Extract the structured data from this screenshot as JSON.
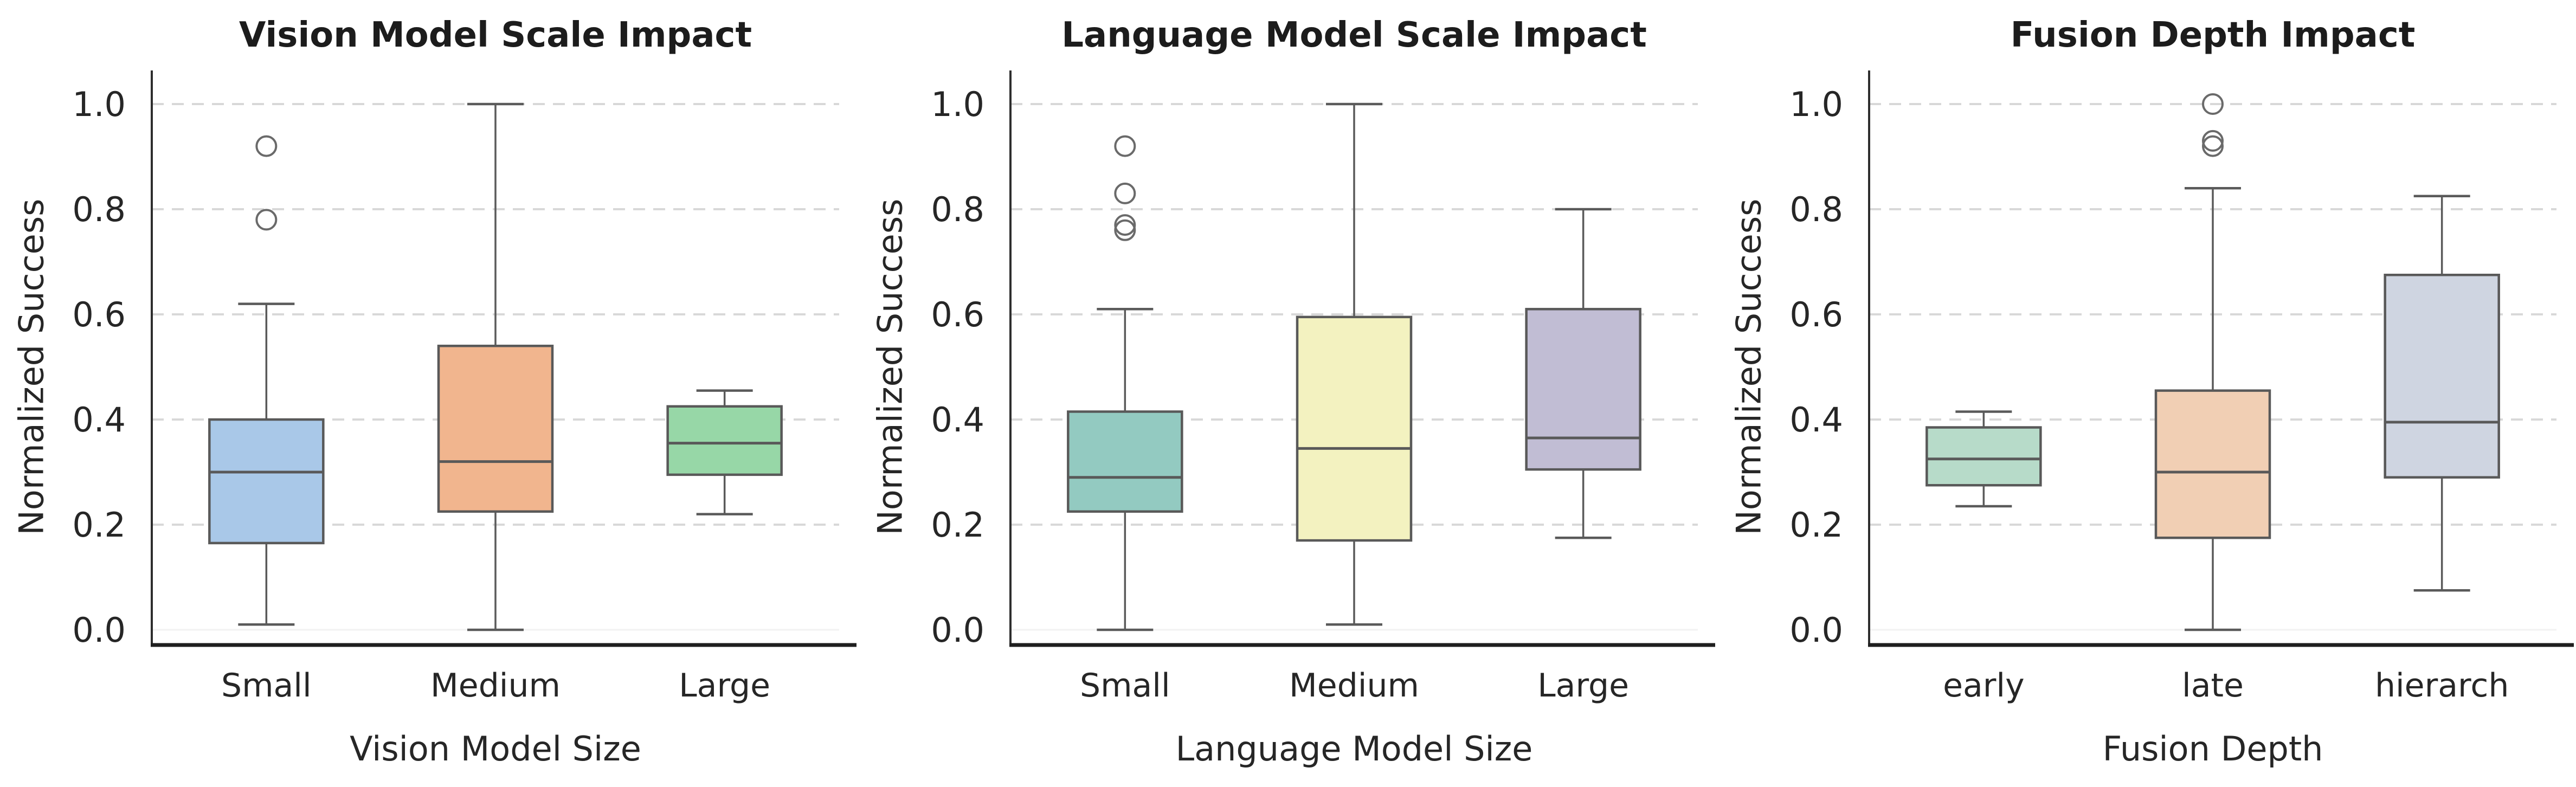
{
  "figure": {
    "background": "#ffffff",
    "text_color": "#262626",
    "title_color": "#1c1c1c",
    "grid_color": "#d8d8d8",
    "zero_line_color": "#f2f2f2",
    "spine_color": "#2e2e2e",
    "bottom_spine_color": "#1f1f1f",
    "box_edge_color": "#595959",
    "whisker_color": "#5a5a5a",
    "flier_color": "#6a6a6a",
    "ylabel": "Normalized Success",
    "ytick_labels": [
      "0.0",
      "0.2",
      "0.4",
      "0.6",
      "0.8",
      "1.0"
    ],
    "ytick_values": [
      0.0,
      0.2,
      0.4,
      0.6,
      0.8,
      1.0
    ]
  },
  "chart_data": [
    {
      "type": "box",
      "title": "Vision Model Scale Impact",
      "xlabel": "Vision Model Size",
      "ylabel": "Normalized Success",
      "ylim": [
        0.0,
        1.0
      ],
      "grid": "dashed-horizontal",
      "legend": "none",
      "categories": [
        "Small",
        "Medium",
        "Large"
      ],
      "boxes": [
        {
          "label": "Small",
          "color": "#a9c8e8",
          "whislo": 0.01,
          "q1": 0.165,
          "med": 0.3,
          "q3": 0.4,
          "whishi": 0.62,
          "fliers": [
            0.78,
            0.92
          ]
        },
        {
          "label": "Medium",
          "color": "#f1b58e",
          "whislo": 0.0,
          "q1": 0.225,
          "med": 0.32,
          "q3": 0.54,
          "whishi": 1.0,
          "fliers": []
        },
        {
          "label": "Large",
          "color": "#97d7a7",
          "whislo": 0.22,
          "q1": 0.295,
          "med": 0.355,
          "q3": 0.425,
          "whishi": 0.455,
          "fliers": []
        }
      ]
    },
    {
      "type": "box",
      "title": "Language Model Scale Impact",
      "xlabel": "Language Model Size",
      "ylabel": "Normalized Success",
      "ylim": [
        0.0,
        1.0
      ],
      "grid": "dashed-horizontal",
      "legend": "none",
      "categories": [
        "Small",
        "Medium",
        "Large"
      ],
      "boxes": [
        {
          "label": "Small",
          "color": "#93cac1",
          "whislo": 0.0,
          "q1": 0.225,
          "med": 0.29,
          "q3": 0.415,
          "whishi": 0.61,
          "fliers": [
            0.76,
            0.77,
            0.83,
            0.92
          ]
        },
        {
          "label": "Medium",
          "color": "#f3f2c0",
          "whislo": 0.01,
          "q1": 0.17,
          "med": 0.345,
          "q3": 0.595,
          "whishi": 1.0,
          "fliers": []
        },
        {
          "label": "Large",
          "color": "#c1bdd4",
          "whislo": 0.175,
          "q1": 0.305,
          "med": 0.365,
          "q3": 0.61,
          "whishi": 0.8,
          "fliers": []
        }
      ]
    },
    {
      "type": "box",
      "title": "Fusion Depth Impact",
      "xlabel": "Fusion Depth",
      "ylabel": "Normalized Success",
      "ylim": [
        0.0,
        1.0
      ],
      "grid": "dashed-horizontal",
      "legend": "none",
      "categories": [
        "early",
        "late",
        "hierarch"
      ],
      "boxes": [
        {
          "label": "early",
          "color": "#b7dbc9",
          "whislo": 0.235,
          "q1": 0.275,
          "med": 0.325,
          "q3": 0.385,
          "whishi": 0.415,
          "fliers": []
        },
        {
          "label": "late",
          "color": "#f1cfb4",
          "whislo": 0.0,
          "q1": 0.175,
          "med": 0.3,
          "q3": 0.455,
          "whishi": 0.84,
          "fliers": [
            0.92,
            0.93,
            1.0
          ]
        },
        {
          "label": "hierarch",
          "color": "#cfd5e1",
          "whislo": 0.075,
          "q1": 0.29,
          "med": 0.395,
          "q3": 0.675,
          "whishi": 0.825,
          "fliers": []
        }
      ]
    }
  ]
}
